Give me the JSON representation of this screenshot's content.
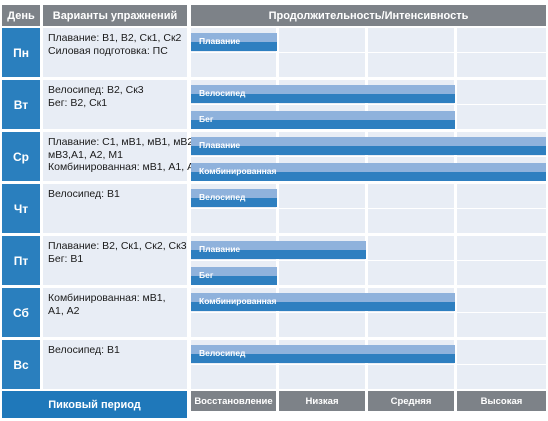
{
  "headers": {
    "day": "День",
    "exercises": "Варианты упражнений",
    "duration": "Продолжительность/Интенсивность"
  },
  "days": [
    {
      "day": "Пн",
      "exercises": [
        "Плавание: В1, В2, Ск1, Ск2",
        "Силовая подготовка: ПС"
      ],
      "bars": [
        {
          "label": "Плавание",
          "level": 1
        }
      ]
    },
    {
      "day": "Вт",
      "exercises": [
        "Велосипед: В2, Ск3",
        "Бег: В2, Ск1"
      ],
      "bars": [
        {
          "label": "Велосипед",
          "level": 3
        },
        {
          "label": "Бег",
          "level": 3
        }
      ]
    },
    {
      "day": "Ср",
      "exercises": [
        "Плавание: С1, мВ1, мВ1, мВ2,",
        "мВ3,А1, А2, М1",
        "Комбинированная: мВ1, А1, А2"
      ],
      "bars": [
        {
          "label": "Плавание",
          "level": 4
        },
        {
          "label": "Комбинированная",
          "level": 4
        }
      ]
    },
    {
      "day": "Чт",
      "exercises": [
        "Велосипед: В1"
      ],
      "bars": [
        {
          "label": "Велосипед",
          "level": 1
        }
      ]
    },
    {
      "day": "Пт",
      "exercises": [
        "Плавание: В2, Ск1, Ск2, Ск3",
        "Бег: В1"
      ],
      "bars": [
        {
          "label": "Плавание",
          "level": 2
        },
        {
          "label": "Бег",
          "level": 1
        }
      ]
    },
    {
      "day": "Сб",
      "exercises": [
        "Комбинированная: мВ1,",
        "А1, А2"
      ],
      "bars": [
        {
          "label": "Комбинированная",
          "level": 3
        }
      ]
    },
    {
      "day": "Вс",
      "exercises": [
        "Велосипед: В1"
      ],
      "bars": [
        {
          "label": "Велосипед",
          "level": 3
        }
      ]
    }
  ],
  "footer": {
    "period": "Пиковый период",
    "levels": [
      "Восстановление",
      "Низкая",
      "Средняя",
      "Высокая"
    ]
  },
  "colors": {
    "header_gray": "#7d8288",
    "day_blue": "#2a7fbe",
    "cell_bg": "#e8edf5",
    "bar_light": "#8fb2dc",
    "bar_dark": "#2e7fc0"
  }
}
